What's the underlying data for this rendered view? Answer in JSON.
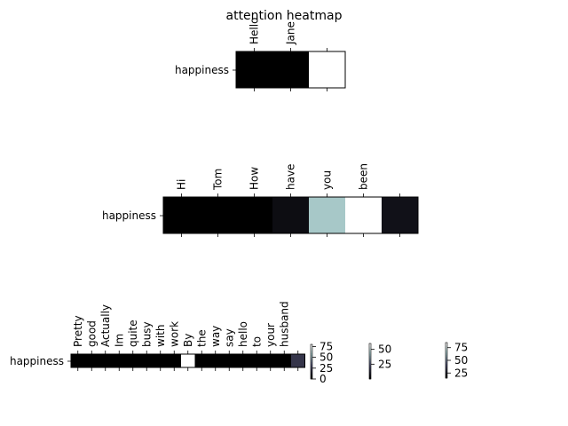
{
  "title": "attention heatmap",
  "chart_data": [
    {
      "type": "heatmap",
      "row_labels": [
        "happiness"
      ],
      "col_labels": [
        "Hello",
        "Jane",
        ""
      ],
      "values": [
        [
          0,
          0,
          100
        ]
      ],
      "colormap": "bone"
    },
    {
      "type": "heatmap",
      "row_labels": [
        "happiness"
      ],
      "col_labels": [
        "Hi",
        "Tom",
        "How",
        "have",
        "you",
        "been",
        ""
      ],
      "values": [
        [
          0,
          0,
          0,
          6,
          75,
          100,
          8
        ]
      ],
      "colormap": "bone"
    },
    {
      "type": "heatmap",
      "row_labels": [
        "happiness"
      ],
      "col_labels": [
        "Pretty",
        "good",
        "Actually",
        "Im",
        "quite",
        "busy",
        "with",
        "work",
        "By",
        "the",
        "way",
        "say",
        "hello",
        "to",
        "your",
        "husband",
        ""
      ],
      "values": [
        [
          0,
          0,
          0,
          0,
          0,
          0,
          0,
          0,
          100,
          0,
          0,
          0,
          0,
          0,
          0,
          0,
          25
        ]
      ],
      "colormap": "bone"
    }
  ],
  "colorbars": [
    {
      "ticks": [
        "75",
        "50",
        "25",
        "0"
      ],
      "vmin": 0,
      "vmax": 80
    },
    {
      "ticks": [
        "50",
        "25"
      ],
      "vmin": 0,
      "vmax": 60
    },
    {
      "ticks": [
        "75",
        "50",
        "25"
      ],
      "vmin": 15,
      "vmax": 85
    }
  ]
}
